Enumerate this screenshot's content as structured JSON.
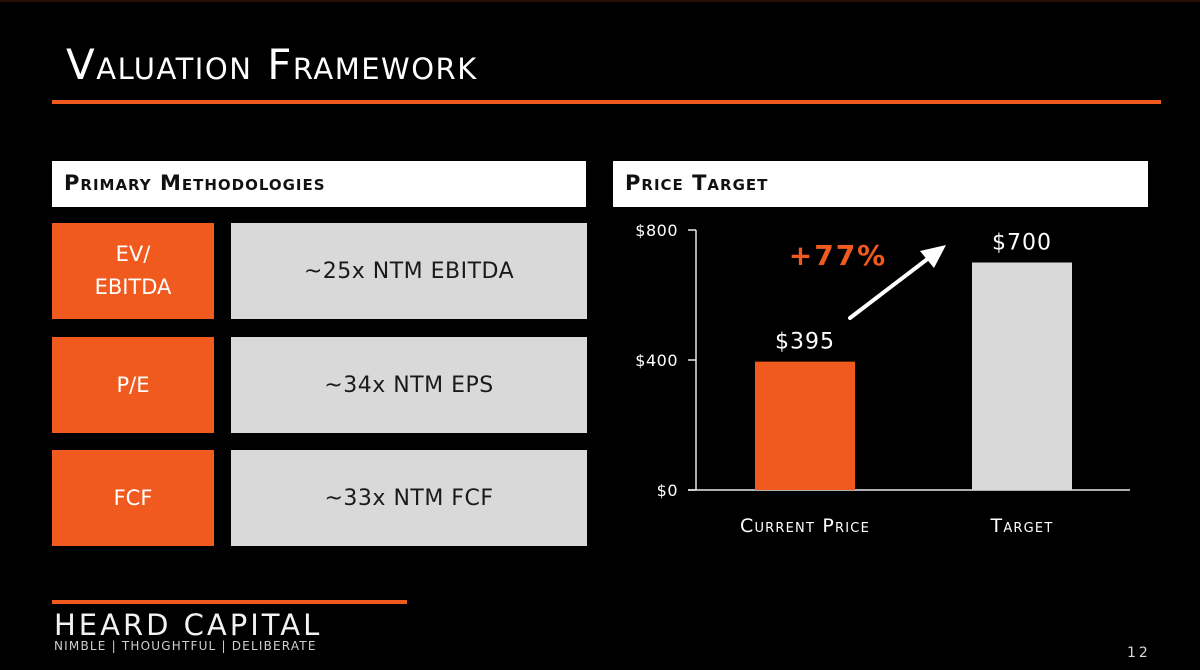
{
  "slide": {
    "title": "Valuation Framework",
    "page_number": "12"
  },
  "colors": {
    "accent": "#f05a1e",
    "panel_gray": "#d9d9d9",
    "background": "#000000"
  },
  "methodologies": {
    "header": "Primary Methodologies",
    "rows": [
      {
        "name": "EV/\nEBITDA",
        "value": "~25x NTM EBITDA"
      },
      {
        "name": "P/E",
        "value": "~34x NTM EPS"
      },
      {
        "name": "FCF",
        "value": "~33x NTM FCF"
      }
    ]
  },
  "price_target": {
    "header": "Price Target"
  },
  "chart_data": {
    "type": "bar",
    "categories": [
      "Current Price",
      "Target"
    ],
    "values": [
      395,
      700
    ],
    "value_labels": [
      "$395",
      "$700"
    ],
    "ylim": [
      0,
      800
    ],
    "yticks": [
      0,
      400,
      800
    ],
    "ytick_labels": [
      "$0",
      "$400",
      "$800"
    ],
    "bar_colors": [
      "#f05a1e",
      "#d9d9d9"
    ],
    "annotation": "+77%",
    "grid": false,
    "title": "",
    "xlabel": "",
    "ylabel": ""
  },
  "footer": {
    "brand": "HEARD CAPITAL",
    "tagline": "NIMBLE | THOUGHTFUL | DELIBERATE"
  }
}
